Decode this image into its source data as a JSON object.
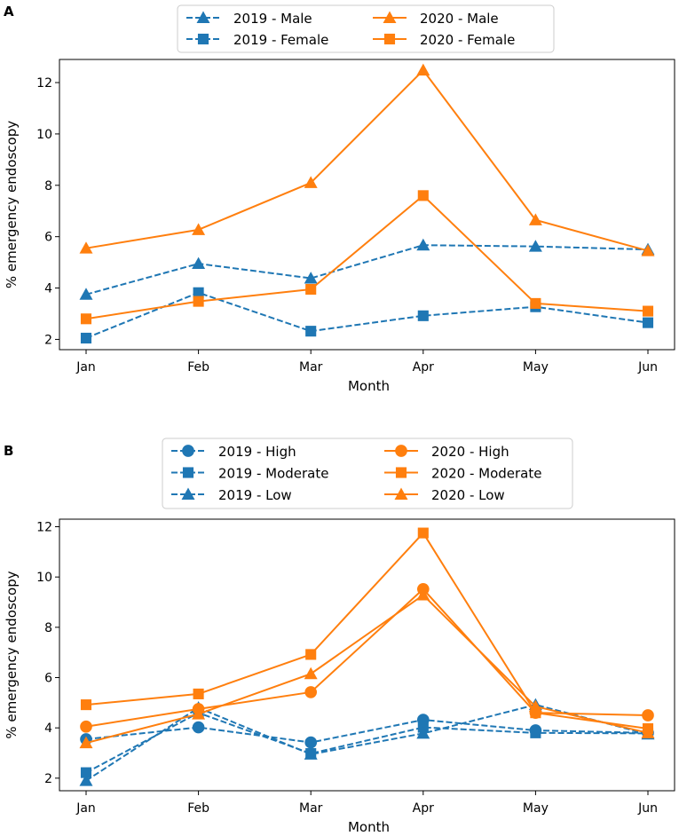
{
  "chart_data": [
    {
      "panel": "A",
      "type": "line",
      "xlabel": "Month",
      "ylabel": "% emergency endoscopy",
      "categories": [
        "Jan",
        "Feb",
        "Mar",
        "Apr",
        "May",
        "Jun"
      ],
      "ylim": [
        1.6,
        12.9
      ],
      "yticks": [
        2,
        4,
        6,
        8,
        10,
        12
      ],
      "grid": false,
      "legend_location": "top-center, 2 columns",
      "series": [
        {
          "name": "2019 - Male",
          "color": "#1f77b4",
          "linestyle": "dashed",
          "marker": "triangle",
          "values": [
            3.75,
            4.95,
            4.38,
            5.67,
            5.62,
            5.5
          ]
        },
        {
          "name": "2019 - Female",
          "color": "#1f77b4",
          "linestyle": "dashed",
          "marker": "square",
          "values": [
            2.05,
            3.82,
            2.32,
            2.92,
            3.27,
            2.65
          ]
        },
        {
          "name": "2020 - Male",
          "color": "#ff7f0e",
          "linestyle": "solid",
          "marker": "triangle",
          "values": [
            5.55,
            6.27,
            8.1,
            12.48,
            6.65,
            5.45
          ]
        },
        {
          "name": "2020 - Female",
          "color": "#ff7f0e",
          "linestyle": "solid",
          "marker": "square",
          "values": [
            2.8,
            3.48,
            3.95,
            7.6,
            3.4,
            3.1
          ]
        }
      ]
    },
    {
      "panel": "B",
      "type": "line",
      "xlabel": "Month",
      "ylabel": "% emergency endoscopy",
      "categories": [
        "Jan",
        "Feb",
        "Mar",
        "Apr",
        "May",
        "Jun"
      ],
      "ylim": [
        1.5,
        12.3
      ],
      "yticks": [
        2,
        4,
        6,
        8,
        10,
        12
      ],
      "grid": false,
      "legend_location": "top-center, 2 columns",
      "series": [
        {
          "name": "2019 - High",
          "color": "#1f77b4",
          "linestyle": "dashed",
          "marker": "circle",
          "values": [
            3.55,
            4.02,
            3.42,
            4.32,
            3.9,
            3.8
          ]
        },
        {
          "name": "2019 - Moderate",
          "color": "#1f77b4",
          "linestyle": "dashed",
          "marker": "square",
          "values": [
            2.22,
            4.6,
            2.98,
            4.02,
            3.8,
            3.78
          ]
        },
        {
          "name": "2019 - Low",
          "color": "#1f77b4",
          "linestyle": "dashed",
          "marker": "triangle",
          "values": [
            1.9,
            4.8,
            2.95,
            3.78,
            4.92,
            3.75
          ]
        },
        {
          "name": "2020 - High",
          "color": "#ff7f0e",
          "linestyle": "solid",
          "marker": "circle",
          "values": [
            4.05,
            4.75,
            5.42,
            9.52,
            4.6,
            4.5
          ]
        },
        {
          "name": "2020 - Moderate",
          "color": "#ff7f0e",
          "linestyle": "solid",
          "marker": "square",
          "values": [
            4.92,
            5.35,
            6.92,
            11.75,
            4.6,
            3.97
          ]
        },
        {
          "name": "2020 - Low",
          "color": "#ff7f0e",
          "linestyle": "solid",
          "marker": "triangle",
          "values": [
            3.4,
            4.55,
            6.15,
            9.28,
            4.85,
            3.8
          ]
        }
      ]
    }
  ]
}
